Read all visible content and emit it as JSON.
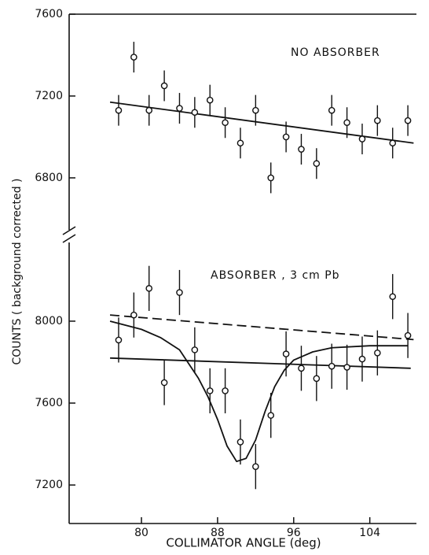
{
  "chart_data": [
    {
      "type": "scatter",
      "annotation": "NO ABSORBER",
      "y_label": "COUNTS ( background corrected )",
      "x": [
        77.6,
        79.2,
        80.8,
        82.4,
        84,
        85.6,
        87.2,
        88.8,
        90.4,
        92,
        93.6,
        95.2,
        96.8,
        98.4,
        100,
        101.6,
        103.2,
        104.8,
        106.4,
        108
      ],
      "values": [
        7130,
        7390,
        7130,
        7250,
        7140,
        7120,
        7180,
        7070,
        6970,
        7130,
        6800,
        7000,
        6940,
        6870,
        7130,
        7070,
        6990,
        7080,
        6970,
        7080
      ],
      "errors": [
        75,
        75,
        75,
        75,
        75,
        75,
        75,
        75,
        75,
        75,
        75,
        75,
        75,
        75,
        75,
        75,
        75,
        75,
        75,
        75
      ],
      "lines": [
        {
          "x": [
            76.7,
            108.6
          ],
          "values": [
            7170,
            6970
          ],
          "style": "solid"
        }
      ],
      "xlim": [
        72.4,
        108.9
      ],
      "ylim": [
        6515,
        7600
      ],
      "yticks": [
        6800,
        7200,
        7600
      ]
    },
    {
      "type": "scatter",
      "annotation": "ABSORBER , 3 cm Pb",
      "x_label": "COLLIMATOR ANGLE (deg)",
      "x": [
        77.6,
        79.2,
        80.8,
        82.4,
        84,
        85.6,
        87.2,
        88.8,
        90.4,
        92,
        93.6,
        95.2,
        96.8,
        98.4,
        100,
        101.6,
        103.2,
        104.8,
        106.4,
        108
      ],
      "values": [
        7908,
        8030,
        8160,
        7700,
        8140,
        7860,
        7660,
        7660,
        7410,
        7290,
        7540,
        7840,
        7770,
        7720,
        7780,
        7775,
        7815,
        7845,
        8120,
        7930
      ],
      "errors": [
        110,
        110,
        110,
        110,
        110,
        110,
        110,
        110,
        110,
        110,
        110,
        110,
        110,
        110,
        110,
        110,
        110,
        110,
        110,
        110
      ],
      "lines": [
        {
          "x": [
            76.7,
            108.3
          ],
          "values": [
            7820,
            7770
          ],
          "style": "solid"
        },
        {
          "x": [
            76.7,
            108.6
          ],
          "values": [
            8030,
            7910
          ],
          "style": "dashed"
        },
        {
          "x": [
            76.7,
            80,
            82,
            84,
            86,
            87,
            88,
            89,
            90,
            91,
            92,
            93,
            94,
            95,
            96,
            98,
            100,
            104,
            108
          ],
          "values": [
            8000,
            7960,
            7920,
            7860,
            7720,
            7630,
            7520,
            7390,
            7315,
            7330,
            7420,
            7560,
            7680,
            7760,
            7810,
            7850,
            7870,
            7880,
            7880
          ],
          "style": "solid"
        }
      ],
      "xlim": [
        72.4,
        108.9
      ],
      "ylim": [
        7012,
        8415
      ],
      "yticks": [
        7200,
        7600,
        8000
      ],
      "xticks": [
        80,
        88,
        96,
        104
      ]
    }
  ]
}
